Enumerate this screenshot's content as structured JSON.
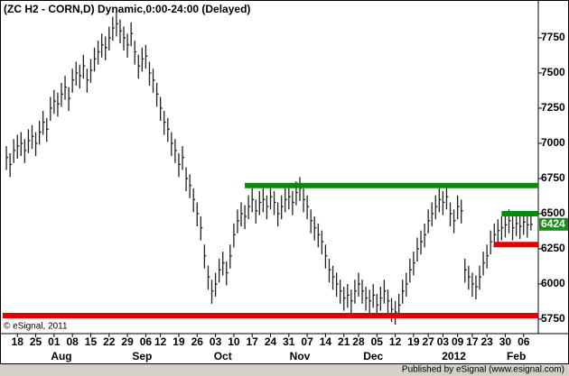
{
  "chart_data": {
    "type": "ohlc",
    "title": "(ZC H2 - CORN,D) Dynamic,0:00-24:00 (Delayed)",
    "copyright": "© eSignal, 2011",
    "publisher": "Published by eSignal (www.esignal.com)",
    "bar_color": "#222222",
    "xlim": [
      -1,
      145
    ],
    "ylim": [
      5647,
      8019
    ],
    "yticks": [
      5750,
      6000,
      6250,
      6500,
      6750,
      7000,
      7250,
      7500,
      7750
    ],
    "xticks": [
      {
        "value": 3,
        "label": "18"
      },
      {
        "value": 8,
        "label": "25"
      },
      {
        "value": 13,
        "label": "01"
      },
      {
        "value": 18,
        "label": "08"
      },
      {
        "value": 23,
        "label": "15"
      },
      {
        "value": 28,
        "label": "22"
      },
      {
        "value": 33,
        "label": "29"
      },
      {
        "value": 38,
        "label": "06"
      },
      {
        "value": 42,
        "label": "12"
      },
      {
        "value": 47,
        "label": "19"
      },
      {
        "value": 52,
        "label": "26"
      },
      {
        "value": 57,
        "label": "03"
      },
      {
        "value": 62,
        "label": "10"
      },
      {
        "value": 67,
        "label": "17"
      },
      {
        "value": 72,
        "label": "24"
      },
      {
        "value": 77,
        "label": "31"
      },
      {
        "value": 82,
        "label": "07"
      },
      {
        "value": 87,
        "label": "14"
      },
      {
        "value": 92,
        "label": "21"
      },
      {
        "value": 96,
        "label": "28"
      },
      {
        "value": 101,
        "label": "05"
      },
      {
        "value": 106,
        "label": "12"
      },
      {
        "value": 111,
        "label": "19"
      },
      {
        "value": 115,
        "label": "27"
      },
      {
        "value": 119,
        "label": "03"
      },
      {
        "value": 123,
        "label": "09"
      },
      {
        "value": 127,
        "label": "17"
      },
      {
        "value": 131,
        "label": "23"
      },
      {
        "value": 136,
        "label": "30"
      },
      {
        "value": 141,
        "label": "06"
      }
    ],
    "month_labels": [
      {
        "value": 15,
        "label": "Aug"
      },
      {
        "value": 37,
        "label": "Sep"
      },
      {
        "value": 59,
        "label": "Oct"
      },
      {
        "value": 80,
        "label": "Nov"
      },
      {
        "value": 100,
        "label": "Dec"
      },
      {
        "value": 122,
        "label": "2012"
      },
      {
        "value": 139,
        "label": "Feb"
      }
    ],
    "high": [
      6980,
      6930,
      7030,
      7060,
      7080,
      7030,
      7100,
      7130,
      7080,
      7160,
      7230,
      7180,
      7330,
      7380,
      7360,
      7430,
      7480,
      7400,
      7530,
      7580,
      7560,
      7630,
      7530,
      7600,
      7680,
      7730,
      7780,
      7760,
      7830,
      7900,
      7930,
      7880,
      7830,
      7780,
      7860,
      7730,
      7630,
      7680,
      7700,
      7580,
      7530,
      7430,
      7330,
      7230,
      7180,
      7080,
      7030,
      6930,
      6980,
      6830,
      6780,
      6680,
      6580,
      6480,
      6280,
      6130,
      6030,
      6080,
      6180,
      6230,
      6160,
      6280,
      6430,
      6530,
      6580,
      6560,
      6630,
      6680,
      6600,
      6660,
      6680,
      6630,
      6700,
      6660,
      6580,
      6630,
      6680,
      6700,
      6660,
      6730,
      6760,
      6680,
      6630,
      6530,
      6480,
      6430,
      6380,
      6280,
      6180,
      6130,
      6080,
      6030,
      5980,
      6000,
      5960,
      6030,
      6080,
      6030,
      5980,
      5960,
      6000,
      5930,
      5980,
      6030,
      5960,
      5900,
      5880,
      5930,
      6030,
      6080,
      6180,
      6230,
      6330,
      6380,
      6430,
      6530,
      6580,
      6630,
      6680,
      6660,
      6700,
      6580,
      6530,
      6630,
      6600,
      6180,
      6130,
      6080,
      6060,
      6130,
      6230,
      6280,
      6380,
      6430,
      6460,
      6480,
      6500,
      6530,
      6480,
      6510,
      6490,
      6520,
      6500,
      6480
    ],
    "low": [
      6810,
      6760,
      6860,
      6890,
      6910,
      6860,
      6930,
      6960,
      6910,
      6990,
      7060,
      7010,
      7160,
      7210,
      7190,
      7260,
      7310,
      7230,
      7360,
      7410,
      7390,
      7460,
      7360,
      7430,
      7510,
      7560,
      7610,
      7590,
      7660,
      7730,
      7760,
      7710,
      7660,
      7610,
      7690,
      7560,
      7460,
      7510,
      7530,
      7410,
      7360,
      7260,
      7160,
      7060,
      7010,
      6910,
      6860,
      6760,
      6810,
      6660,
      6610,
      6510,
      6410,
      6310,
      6110,
      5960,
      5860,
      5910,
      6010,
      6060,
      5990,
      6110,
      6260,
      6360,
      6410,
      6390,
      6460,
      6510,
      6430,
      6490,
      6510,
      6460,
      6530,
      6490,
      6410,
      6460,
      6510,
      6530,
      6490,
      6560,
      6590,
      6510,
      6460,
      6360,
      6310,
      6260,
      6210,
      6110,
      6010,
      5960,
      5910,
      5860,
      5810,
      5830,
      5790,
      5860,
      5910,
      5860,
      5810,
      5790,
      5830,
      5760,
      5810,
      5860,
      5790,
      5730,
      5710,
      5760,
      5860,
      5910,
      6010,
      6060,
      6160,
      6210,
      6260,
      6360,
      6410,
      6460,
      6510,
      6490,
      6530,
      6410,
      6360,
      6460,
      6430,
      6010,
      5960,
      5910,
      5890,
      5960,
      6060,
      6110,
      6210,
      6260,
      6290,
      6310,
      6330,
      6360,
      6310,
      6340,
      6320,
      6350,
      6330,
      6380
    ],
    "close": [
      6900,
      6850,
      6950,
      6980,
      7000,
      6950,
      7020,
      7050,
      7000,
      7080,
      7150,
      7100,
      7250,
      7300,
      7280,
      7350,
      7400,
      7320,
      7450,
      7500,
      7480,
      7550,
      7450,
      7520,
      7600,
      7650,
      7700,
      7680,
      7750,
      7820,
      7850,
      7800,
      7750,
      7700,
      7780,
      7650,
      7550,
      7600,
      7620,
      7500,
      7450,
      7350,
      7250,
      7150,
      7100,
      7000,
      6950,
      6850,
      6900,
      6750,
      6700,
      6600,
      6500,
      6400,
      6200,
      6050,
      5950,
      6000,
      6100,
      6150,
      6080,
      6200,
      6350,
      6450,
      6500,
      6480,
      6550,
      6600,
      6520,
      6580,
      6600,
      6550,
      6620,
      6580,
      6500,
      6550,
      6600,
      6620,
      6580,
      6650,
      6680,
      6600,
      6550,
      6450,
      6400,
      6350,
      6300,
      6200,
      6100,
      6050,
      6000,
      5950,
      5900,
      5920,
      5880,
      5950,
      6000,
      5950,
      5900,
      5880,
      5920,
      5850,
      5900,
      5950,
      5880,
      5820,
      5800,
      5850,
      5950,
      6000,
      6100,
      6150,
      6250,
      6300,
      6350,
      6450,
      6500,
      6550,
      6600,
      6580,
      6620,
      6500,
      6450,
      6550,
      6520,
      6100,
      6050,
      6000,
      5980,
      6050,
      6150,
      6200,
      6300,
      6350,
      6380,
      6400,
      6420,
      6450,
      6400,
      6430,
      6410,
      6440,
      6420,
      6424
    ],
    "last_price": 6424,
    "last_price_color": "#1e8c1e",
    "levels": [
      {
        "value": 6700,
        "start": 65,
        "color": "#0a8a0a"
      },
      {
        "value": 5775,
        "start": -1,
        "color": "#e00000"
      },
      {
        "value": 6500,
        "start": 135,
        "color": "#0a8a0a"
      },
      {
        "value": 6280,
        "start": 133,
        "color": "#e00000"
      }
    ]
  }
}
